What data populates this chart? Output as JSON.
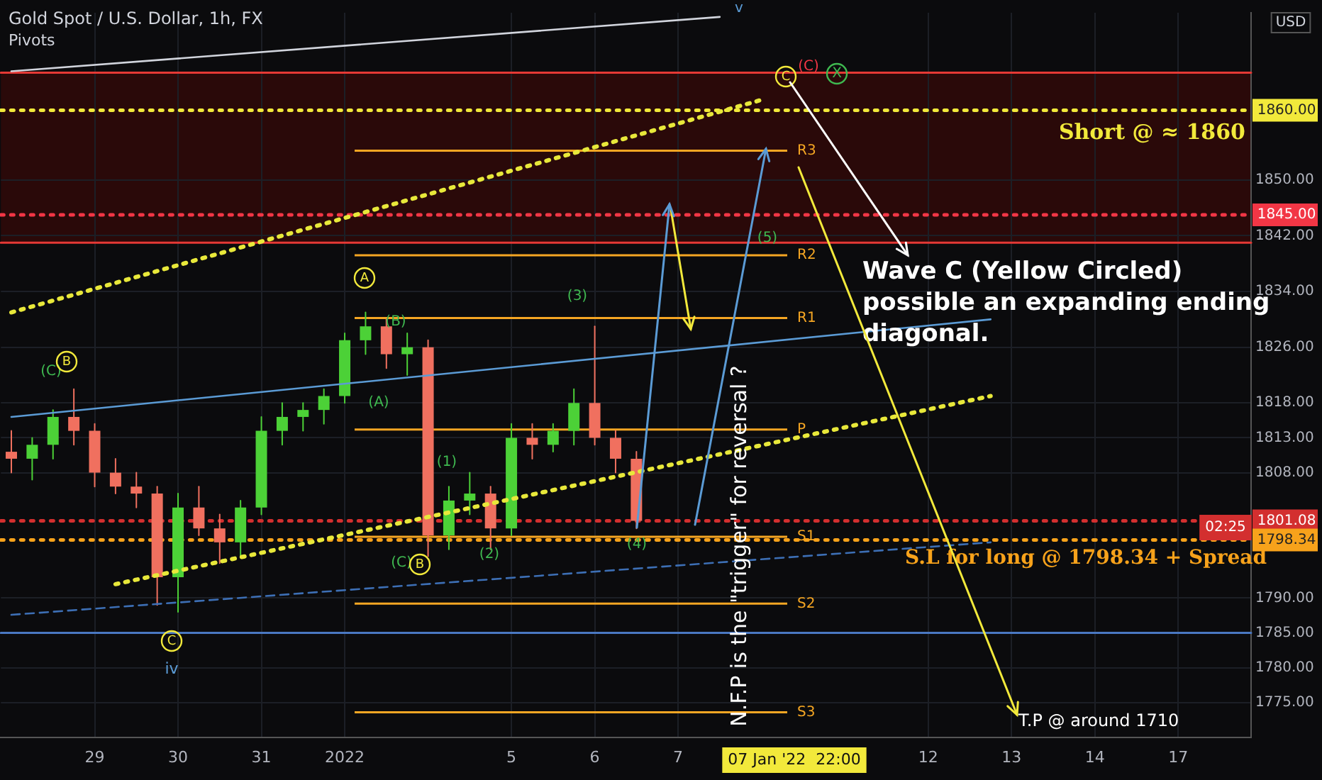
{
  "chart_data": {
    "type": "candlestick",
    "title": "Gold Spot / U.S. Dollar, 1h, FX",
    "subtitle": "Pivots",
    "categories": [
      null,
      null,
      null,
      null,
      "29",
      null,
      null,
      null,
      "30",
      null,
      null,
      null,
      "31",
      null,
      null,
      null,
      "2022",
      null,
      null,
      null,
      null,
      null,
      null,
      null,
      "5",
      null,
      null,
      null,
      "6",
      null,
      null,
      null,
      "7",
      null,
      null,
      null,
      null,
      null,
      null,
      null,
      null,
      null,
      null,
      null,
      "12",
      null,
      null,
      null,
      "13",
      null,
      null,
      null,
      "14",
      null,
      null,
      null,
      "17",
      null,
      null,
      null
    ],
    "ohlc": [
      [
        1811,
        1814,
        1808,
        1810
      ],
      [
        1810,
        1813,
        1807,
        1812
      ],
      [
        1812,
        1817,
        1810,
        1816
      ],
      [
        1816,
        1820,
        1812,
        1814
      ],
      [
        1814,
        1815,
        1806,
        1808
      ],
      [
        1808,
        1810,
        1805,
        1806
      ],
      [
        1806,
        1808,
        1803,
        1805
      ],
      [
        1805,
        1806,
        1789,
        1793
      ],
      [
        1793,
        1805,
        1788,
        1803
      ],
      [
        1803,
        1806,
        1799,
        1800
      ],
      [
        1800,
        1802,
        1795,
        1798
      ],
      [
        1798,
        1804,
        1796,
        1803
      ],
      [
        1803,
        1816,
        1802,
        1814
      ],
      [
        1814,
        1818,
        1812,
        1816
      ],
      [
        1816,
        1818,
        1814,
        1817
      ],
      [
        1817,
        1820,
        1815,
        1819
      ],
      [
        1819,
        1828,
        1818,
        1827
      ],
      [
        1827,
        1831,
        1825,
        1829
      ],
      [
        1829,
        1830,
        1823,
        1825
      ],
      [
        1825,
        1828,
        1822,
        1826
      ],
      [
        1826,
        1827,
        1796,
        1799
      ],
      [
        1799,
        1806,
        1797,
        1804
      ],
      [
        1804,
        1808,
        1802,
        1805
      ],
      [
        1805,
        1806,
        1797,
        1800
      ],
      [
        1800,
        1815,
        1799,
        1813
      ],
      [
        1813,
        1815,
        1810,
        1812
      ],
      [
        1812,
        1815,
        1811,
        1814
      ],
      [
        1814,
        1820,
        1812,
        1818
      ],
      [
        1818,
        1829,
        1812,
        1813
      ],
      [
        1813,
        1814,
        1808,
        1810
      ],
      [
        1810,
        1811,
        1800,
        1801.08
      ],
      null,
      null,
      null,
      null,
      null,
      null,
      null,
      null,
      null,
      null,
      null,
      null,
      null,
      null,
      null,
      null,
      null,
      null,
      null,
      null,
      null,
      null,
      null,
      null,
      null,
      null,
      null,
      null,
      null
    ],
    "series": [
      {
        "type": "line",
        "color": "#d1d4dc",
        "line_style": "solid",
        "values": [
          1865.6,
          null,
          null,
          null,
          null,
          null,
          null,
          null,
          null,
          null,
          null,
          null,
          null,
          null,
          null,
          null,
          null,
          null,
          null,
          null,
          null,
          null,
          null,
          null,
          null,
          null,
          null,
          null,
          null,
          null,
          null,
          null,
          null,
          null,
          1873.4,
          null,
          null,
          null,
          null,
          null,
          null,
          null,
          null,
          null,
          null,
          null,
          null,
          null,
          null,
          null,
          null,
          null,
          null,
          null,
          null,
          null,
          null,
          null,
          null,
          null
        ]
      },
      {
        "type": "line",
        "color": "#5b9bd5",
        "line_style": "solid",
        "values": [
          1816,
          null,
          null,
          null,
          null,
          null,
          null,
          null,
          null,
          null,
          null,
          null,
          null,
          null,
          null,
          null,
          null,
          null,
          null,
          null,
          null,
          null,
          null,
          null,
          null,
          null,
          null,
          null,
          null,
          null,
          null,
          null,
          null,
          null,
          null,
          null,
          null,
          null,
          null,
          null,
          null,
          null,
          null,
          null,
          null,
          null,
          null,
          1830,
          null,
          null,
          null,
          null,
          null,
          null,
          null,
          null,
          null,
          null,
          null,
          null
        ]
      },
      {
        "type": "line",
        "color": "#e8e83a",
        "line_style": "dotted",
        "values": [
          1831,
          null,
          null,
          null,
          null,
          null,
          null,
          null,
          null,
          null,
          null,
          null,
          null,
          null,
          null,
          null,
          null,
          null,
          null,
          null,
          null,
          null,
          null,
          null,
          null,
          null,
          null,
          null,
          null,
          null,
          null,
          null,
          null,
          null,
          null,
          null,
          1861.5,
          null,
          null,
          null,
          null,
          null,
          null,
          null,
          null,
          null,
          null,
          null,
          null,
          null,
          null,
          null,
          null,
          null,
          null,
          null,
          null,
          null,
          null,
          null
        ]
      },
      {
        "type": "line",
        "color": "#e8e83a",
        "line_style": "dotted",
        "values": [
          null,
          null,
          null,
          null,
          null,
          1792,
          null,
          null,
          null,
          null,
          null,
          null,
          null,
          null,
          null,
          null,
          null,
          null,
          null,
          null,
          null,
          null,
          null,
          null,
          null,
          null,
          null,
          null,
          null,
          null,
          null,
          null,
          null,
          null,
          null,
          null,
          null,
          null,
          null,
          null,
          null,
          null,
          null,
          null,
          null,
          null,
          null,
          1819,
          null,
          null,
          null,
          null,
          null,
          null,
          null,
          null,
          null,
          null,
          null,
          null
        ]
      },
      {
        "type": "line",
        "color": "#3d6fb5",
        "line_style": "dashed",
        "values": [
          1787.6,
          null,
          null,
          null,
          null,
          null,
          null,
          null,
          null,
          null,
          null,
          null,
          null,
          null,
          null,
          null,
          null,
          null,
          null,
          null,
          null,
          null,
          null,
          null,
          null,
          null,
          null,
          null,
          null,
          null,
          null,
          null,
          null,
          null,
          null,
          null,
          null,
          null,
          null,
          null,
          null,
          null,
          null,
          null,
          null,
          null,
          null,
          1798,
          null,
          null,
          null,
          null,
          null,
          null,
          null,
          null,
          null,
          null,
          null,
          null
        ]
      }
    ],
    "ylim": [
      1770,
      1874
    ],
    "yticks": [
      {
        "value": 1775,
        "label": "1775.00"
      },
      {
        "value": 1780,
        "label": "1780.00"
      },
      {
        "value": 1785,
        "label": "1785.00"
      },
      {
        "value": 1790,
        "label": "1790.00"
      },
      {
        "value": 1808,
        "label": "1808.00"
      },
      {
        "value": 1813,
        "label": "1813.00"
      },
      {
        "value": 1818,
        "label": "1818.00"
      },
      {
        "value": 1826,
        "label": "1826.00"
      },
      {
        "value": 1834,
        "label": "1834.00"
      },
      {
        "value": 1842,
        "label": "1842.00"
      },
      {
        "value": 1850,
        "label": "1850.00"
      }
    ],
    "grid": true,
    "bands": [
      {
        "axis": "y",
        "from": 1841,
        "to": 1865.4,
        "color": "#2a0909"
      }
    ],
    "ref_lines": [
      {
        "axis": "y",
        "value": 1854.2,
        "label": "R3",
        "color": "#f5a623"
      },
      {
        "axis": "y",
        "value": 1839.2,
        "label": "R2",
        "color": "#f5a623"
      },
      {
        "axis": "y",
        "value": 1830.2,
        "label": "R1",
        "color": "#f5a623"
      },
      {
        "axis": "y",
        "value": 1814.2,
        "label": "P",
        "color": "#f5a623"
      },
      {
        "axis": "y",
        "value": 1798.8,
        "label": "S1",
        "color": "#f5a623"
      },
      {
        "axis": "y",
        "value": 1789.2,
        "label": "S2",
        "color": "#f5a623"
      },
      {
        "axis": "y",
        "value": 1773.6,
        "label": "S3",
        "color": "#f5a623"
      },
      {
        "axis": "y",
        "value": 1860,
        "label": "1860.00",
        "color": "#f2e93b",
        "line_style": "dotted"
      },
      {
        "axis": "y",
        "value": 1845,
        "label": "1845.00",
        "color": "#f23645",
        "line_style": "dotted"
      },
      {
        "axis": "y",
        "value": 1801.08,
        "label": "1801.08",
        "color": "#d32f2f",
        "line_style": "dotted"
      },
      {
        "axis": "y",
        "value": 1798.34,
        "label": "1798.34",
        "color": "#f7a21b",
        "line_style": "dotted"
      },
      {
        "axis": "y",
        "value": 1785,
        "color": "#4a78c2",
        "line_style": "solid"
      },
      {
        "axis": "y",
        "value": 1865.4,
        "color": "#e53935",
        "line_style": "solid"
      },
      {
        "axis": "y",
        "value": 1841,
        "color": "#e53935",
        "line_style": "solid"
      }
    ],
    "annotations": [
      "Short @ ≈ 1860",
      "Wave C (Yellow Circled) possible an expanding ending diagonal.",
      "S.L for long @ 1798.34 + Spread",
      "T.P @ around 1710",
      "N.F.P is the \"trigger\" for reversal ?",
      "07 Jan '22  22:00",
      "02:25",
      "USD",
      "(C)",
      "B",
      "A",
      "(B)",
      "(A)",
      "(1)",
      "(2)",
      "(3)",
      "(4)",
      "(5)",
      "(C)",
      "B",
      "C",
      "iv",
      "v",
      "C",
      "(C)",
      "X"
    ]
  }
}
